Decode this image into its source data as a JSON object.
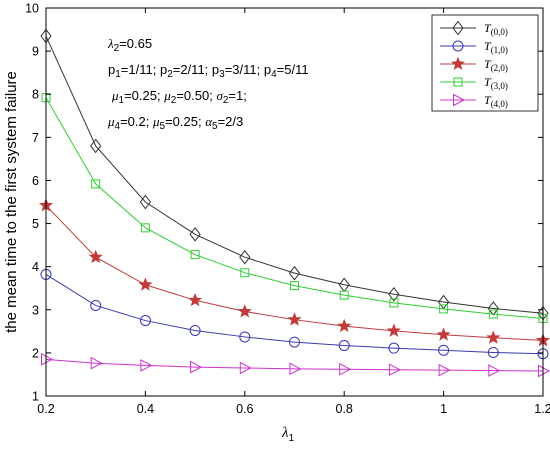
{
  "chart_data": {
    "type": "line",
    "xlabel": "λ",
    "xlabel_sub": "1",
    "ylabel": "the mean time to the first system failure",
    "xlim": [
      0.2,
      1.2
    ],
    "ylim": [
      1,
      10
    ],
    "x_ticks": [
      "0.2",
      "0.4",
      "0.6",
      "0.8",
      "1",
      "1.2"
    ],
    "y_ticks": [
      "1",
      "2",
      "3",
      "4",
      "5",
      "6",
      "7",
      "8",
      "9",
      "10"
    ],
    "grid": false,
    "legend_position": "top-right",
    "x": [
      0.2,
      0.3,
      0.4,
      0.5,
      0.6,
      0.7,
      0.8,
      0.9,
      1.0,
      1.1,
      1.2
    ],
    "series": [
      {
        "name": "T(0,0)",
        "label_main": "T",
        "label_sub": "(0,0)",
        "color": "#333333",
        "marker": "diamond",
        "values": [
          9.35,
          6.8,
          5.5,
          4.75,
          4.22,
          3.85,
          3.58,
          3.36,
          3.18,
          3.03,
          2.92
        ]
      },
      {
        "name": "T(1,0)",
        "label_main": "T",
        "label_sub": "(1,0)",
        "color": "#3a3ab0",
        "marker": "circle",
        "values": [
          3.82,
          3.1,
          2.75,
          2.52,
          2.37,
          2.25,
          2.17,
          2.11,
          2.06,
          2.01,
          1.98
        ]
      },
      {
        "name": "T(2,0)",
        "label_main": "T",
        "label_sub": "(2,0)",
        "color": "#c23b3b",
        "marker": "star",
        "values": [
          5.42,
          4.22,
          3.58,
          3.22,
          2.96,
          2.77,
          2.62,
          2.51,
          2.42,
          2.35,
          2.29
        ]
      },
      {
        "name": "T(3,0)",
        "label_main": "T",
        "label_sub": "(3,0)",
        "color": "#33cc33",
        "marker": "square",
        "values": [
          7.92,
          5.92,
          4.9,
          4.28,
          3.86,
          3.56,
          3.34,
          3.16,
          3.02,
          2.9,
          2.8
        ]
      },
      {
        "name": "T(4,0)",
        "label_main": "T",
        "label_sub": "(4,0)",
        "color": "#cc33cc",
        "marker": "triangle-right",
        "values": [
          1.85,
          1.76,
          1.71,
          1.67,
          1.65,
          1.63,
          1.62,
          1.61,
          1.6,
          1.59,
          1.58
        ]
      }
    ],
    "annotations": [
      "λ2=0.65",
      "p1=1/11; p2=2/11; p3=3/11; p4=5/11",
      "μ1=0.25; μ2=0.50; σ2=1;",
      "μ4=0.2; μ5=0.25; α5=2/3"
    ]
  }
}
